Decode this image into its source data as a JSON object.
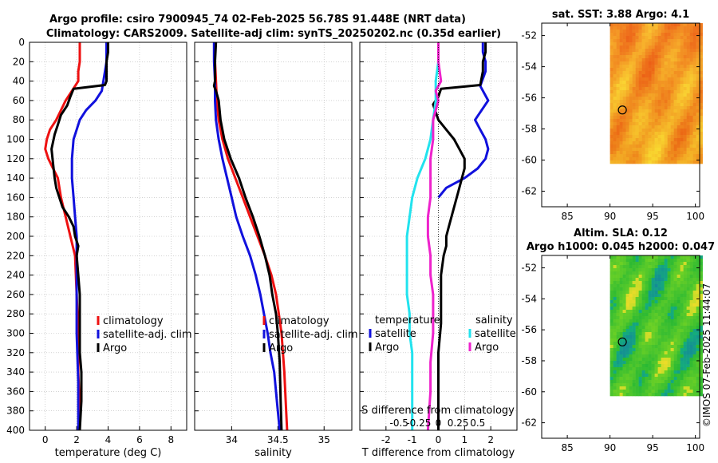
{
  "titles": {
    "line1": "Argo profile: csiro 7900945_74 02-Feb-2025 56.78S 91.448E (NRT data)",
    "line2": "Climatology: CARS2009. Satellite-adj clim: synTS_20250202.nc (0.35d earlier)"
  },
  "colors": {
    "climatology": "#ee1111",
    "satellite": "#1111dd",
    "argo": "#000000",
    "sat_salinity": "#22e3ee",
    "argo_salinity": "#ee22cc"
  },
  "chart_data": [
    {
      "id": "temperature",
      "type": "line",
      "xlabel": "temperature (deg C)",
      "xlim": [
        -1,
        9
      ],
      "xticks": [
        0,
        2,
        4,
        6,
        8
      ],
      "xticklabels": [
        "0",
        "2",
        "4",
        "6",
        "8"
      ],
      "ylim": [
        400,
        0
      ],
      "yticks": [
        0,
        20,
        40,
        60,
        80,
        100,
        120,
        140,
        160,
        180,
        200,
        220,
        240,
        260,
        280,
        300,
        320,
        340,
        360,
        380,
        400
      ],
      "yticklabels": [
        "0",
        "20",
        "40",
        "60",
        "80",
        "100",
        "120",
        "140",
        "160",
        "180",
        "200",
        "220",
        "240",
        "260",
        "280",
        "300",
        "320",
        "340",
        "360",
        "380",
        "400"
      ],
      "legend": [
        {
          "label": "climatology",
          "color": "#ee1111"
        },
        {
          "label": "satellite-adj. clim",
          "color": "#1111dd"
        },
        {
          "label": "Argo",
          "color": "#000000"
        }
      ],
      "series": [
        {
          "name": "climatology",
          "color": "#ee1111",
          "x": [
            2.2,
            2.2,
            2.2,
            2.1,
            2.1,
            1.7,
            1.3,
            1.0,
            0.7,
            0.3,
            0.1,
            0.0,
            0.2,
            0.5,
            0.8,
            1.0,
            1.3,
            1.6,
            1.9,
            2.0,
            2.1,
            2.1,
            2.2,
            2.2
          ],
          "y": [
            0,
            10,
            20,
            30,
            40,
            50,
            60,
            70,
            80,
            90,
            100,
            110,
            120,
            130,
            140,
            160,
            180,
            200,
            220,
            260,
            300,
            340,
            380,
            400
          ]
        },
        {
          "name": "satellite-adj. clim",
          "color": "#1111dd",
          "x": [
            3.9,
            3.9,
            3.9,
            3.8,
            3.7,
            3.6,
            3.2,
            2.6,
            2.2,
            2.0,
            1.8,
            1.7,
            1.7,
            1.8,
            1.9,
            2.0,
            2.0,
            2.0,
            2.0,
            2.1,
            2.1
          ],
          "y": [
            0,
            10,
            20,
            30,
            40,
            50,
            60,
            70,
            80,
            90,
            100,
            120,
            140,
            160,
            180,
            200,
            220,
            260,
            300,
            350,
            400
          ]
        },
        {
          "name": "Argo",
          "color": "#000000",
          "x": [
            4.0,
            4.0,
            3.9,
            3.9,
            3.9,
            3.8,
            1.8,
            1.6,
            1.4,
            1.0,
            0.8,
            0.6,
            0.4,
            0.5,
            0.6,
            0.7,
            0.9,
            1.1,
            1.5,
            1.8,
            1.9,
            2.1,
            2.0,
            2.1,
            2.2,
            2.2,
            2.2,
            2.2,
            2.3,
            2.3,
            2.2
          ],
          "y": [
            0,
            10,
            20,
            30,
            40,
            44,
            48,
            56,
            65,
            75,
            85,
            95,
            110,
            125,
            140,
            150,
            160,
            170,
            180,
            190,
            200,
            210,
            220,
            240,
            260,
            280,
            300,
            320,
            340,
            370,
            400
          ]
        }
      ]
    },
    {
      "id": "salinity",
      "type": "line",
      "xlabel": "salinity",
      "xlim": [
        33.6,
        35.3
      ],
      "xticks": [
        34,
        34.5,
        35
      ],
      "xticklabels": [
        "34",
        "34.5",
        "35"
      ],
      "ylim": [
        400,
        0
      ],
      "legend": [
        {
          "label": "climatology",
          "color": "#ee1111"
        },
        {
          "label": "satellite-adj. clim",
          "color": "#1111dd"
        },
        {
          "label": "Argo",
          "color": "#000000"
        }
      ],
      "series": [
        {
          "name": "climatology",
          "color": "#ee1111",
          "x": [
            33.82,
            33.82,
            33.83,
            33.84,
            33.86,
            33.9,
            33.96,
            34.04,
            34.12,
            34.2,
            34.28,
            34.36,
            34.43,
            34.48,
            34.51,
            34.54,
            34.57,
            34.59,
            34.6
          ],
          "y": [
            0,
            20,
            40,
            60,
            80,
            100,
            120,
            140,
            160,
            180,
            200,
            220,
            240,
            260,
            280,
            300,
            340,
            380,
            400
          ]
        },
        {
          "name": "satellite-adj. clim",
          "color": "#1111dd",
          "x": [
            33.81,
            33.81,
            33.82,
            33.82,
            33.83,
            33.86,
            33.9,
            33.95,
            34.0,
            34.05,
            34.12,
            34.2,
            34.26,
            34.31,
            34.35,
            34.39,
            34.42,
            34.46,
            34.49,
            34.52
          ],
          "y": [
            0,
            20,
            40,
            60,
            80,
            100,
            120,
            140,
            160,
            180,
            200,
            220,
            240,
            260,
            280,
            300,
            320,
            340,
            370,
            400
          ]
        },
        {
          "name": "Argo",
          "color": "#000000",
          "x": [
            33.83,
            33.82,
            33.82,
            33.81,
            33.83,
            33.86,
            33.88,
            33.92,
            33.99,
            34.08,
            34.15,
            34.23,
            34.3,
            34.36,
            34.41,
            34.44,
            34.48,
            34.5,
            34.52,
            34.53,
            34.54
          ],
          "y": [
            0,
            20,
            40,
            45,
            50,
            60,
            80,
            100,
            120,
            140,
            160,
            180,
            200,
            220,
            240,
            260,
            280,
            300,
            330,
            370,
            400
          ]
        }
      ]
    },
    {
      "id": "difference",
      "type": "line",
      "xlabel": "T difference from climatology",
      "toplabel": "S difference from climatology",
      "xlim": [
        -3,
        3
      ],
      "xticks": [
        -2,
        -1,
        0,
        1,
        2
      ],
      "xticklabels": [
        "-2",
        "-1",
        "0",
        "1",
        "2"
      ],
      "s_ticklabels": [
        "-0.5",
        "-0.25",
        "0",
        "0.25",
        "0.5"
      ],
      "ylim": [
        400,
        0
      ],
      "legend_temp_title": "temperature",
      "legend_sal_title": "salinity",
      "legend": [
        {
          "label": "satellite",
          "color": "#1111dd",
          "group": "temperature"
        },
        {
          "label": "Argo",
          "color": "#000000",
          "group": "temperature"
        },
        {
          "label": "satellite",
          "color": "#22e3ee",
          "group": "salinity"
        },
        {
          "label": "Argo",
          "color": "#ee22cc",
          "group": "salinity"
        }
      ],
      "series": [
        {
          "name": "T satellite",
          "color": "#1111dd",
          "x": [
            1.7,
            1.7,
            1.8,
            1.8,
            1.6,
            1.9,
            1.4,
            1.6,
            1.8,
            1.9,
            1.8,
            1.5,
            1.0,
            0.3,
            0.0
          ],
          "y": [
            0,
            10,
            20,
            30,
            45,
            60,
            80,
            90,
            100,
            110,
            120,
            130,
            140,
            150,
            160
          ]
        },
        {
          "name": "T Argo",
          "color": "#000000",
          "x": [
            1.8,
            1.8,
            1.7,
            1.7,
            1.6,
            0.1,
            0.0,
            -0.2,
            -0.1,
            0.0,
            0.3,
            0.6,
            0.8,
            1.0,
            1.0,
            0.9,
            0.8,
            0.7,
            0.6,
            0.5,
            0.4,
            0.3,
            0.3,
            0.2,
            0.1,
            0.1,
            0.1,
            0.0,
            0.0,
            0.0
          ],
          "y": [
            0,
            10,
            20,
            30,
            44,
            48,
            56,
            64,
            72,
            80,
            90,
            100,
            110,
            120,
            130,
            140,
            150,
            160,
            170,
            180,
            190,
            200,
            210,
            220,
            240,
            260,
            290,
            320,
            360,
            400
          ]
        },
        {
          "name": "S satellite",
          "color": "#22e3ee",
          "x": [
            0.0,
            0.0,
            -0.1,
            -0.1,
            -0.2,
            -0.3,
            -0.5,
            -0.8,
            -1.0,
            -1.1,
            -1.2,
            -1.2,
            -1.2,
            -1.2,
            -1.1,
            -1.1,
            -1.0,
            -1.0,
            -1.0
          ],
          "y": [
            0,
            20,
            40,
            60,
            80,
            100,
            120,
            140,
            160,
            180,
            200,
            220,
            240,
            260,
            280,
            300,
            320,
            360,
            400
          ]
        },
        {
          "name": "S Argo",
          "color": "#ee22cc",
          "x": [
            0.0,
            0.0,
            0.1,
            -0.1,
            0.0,
            -0.2,
            -0.2,
            -0.3,
            -0.3,
            -0.3,
            -0.4,
            -0.4,
            -0.3,
            -0.3,
            -0.2,
            -0.2,
            -0.2,
            -0.3,
            -0.3,
            -0.4
          ],
          "y": [
            0,
            20,
            40,
            50,
            60,
            80,
            100,
            120,
            140,
            160,
            180,
            200,
            220,
            240,
            260,
            280,
            300,
            330,
            360,
            400
          ]
        }
      ]
    },
    {
      "id": "sst_map",
      "type": "heatmap",
      "title": "sat. SST: 3.88 Argo: 4.1",
      "xticks": [
        85,
        90,
        95,
        100
      ],
      "xticklabels": [
        "85",
        "90",
        "95",
        "100"
      ],
      "yticks": [
        -52,
        -54,
        -56,
        -58,
        -60,
        -62
      ],
      "yticklabels": [
        "-52",
        "-54",
        "-56",
        "-58",
        "-60",
        "-62"
      ],
      "xlim": [
        82,
        100.5
      ],
      "ylim": [
        -63,
        -51.2
      ],
      "data_extent": {
        "lon": [
          90,
          100.5
        ],
        "lat": [
          -60.1,
          -51.2
        ]
      },
      "marker": {
        "lon": 91.448,
        "lat": -56.78
      }
    },
    {
      "id": "sla_map",
      "type": "heatmap",
      "title_line1": "Altim. SLA: 0.12",
      "title_line2": "Argo h1000: 0.045 h2000: 0.047",
      "xticks": [
        85,
        90,
        95,
        100
      ],
      "xticklabels": [
        "85",
        "90",
        "95",
        "100"
      ],
      "yticks": [
        -52,
        -54,
        -56,
        -58,
        -60,
        -62
      ],
      "yticklabels": [
        "-52",
        "-54",
        "-56",
        "-58",
        "-60",
        "-62"
      ],
      "xlim": [
        82,
        100.5
      ],
      "ylim": [
        -63,
        -51.2
      ],
      "data_extent": {
        "lon": [
          90,
          100.5
        ],
        "lat": [
          -60.1,
          -51.2
        ]
      },
      "marker": {
        "lon": 91.448,
        "lat": -56.78
      }
    }
  ],
  "watermark": "©IMOS 07-Feb-2025 11:44:07"
}
